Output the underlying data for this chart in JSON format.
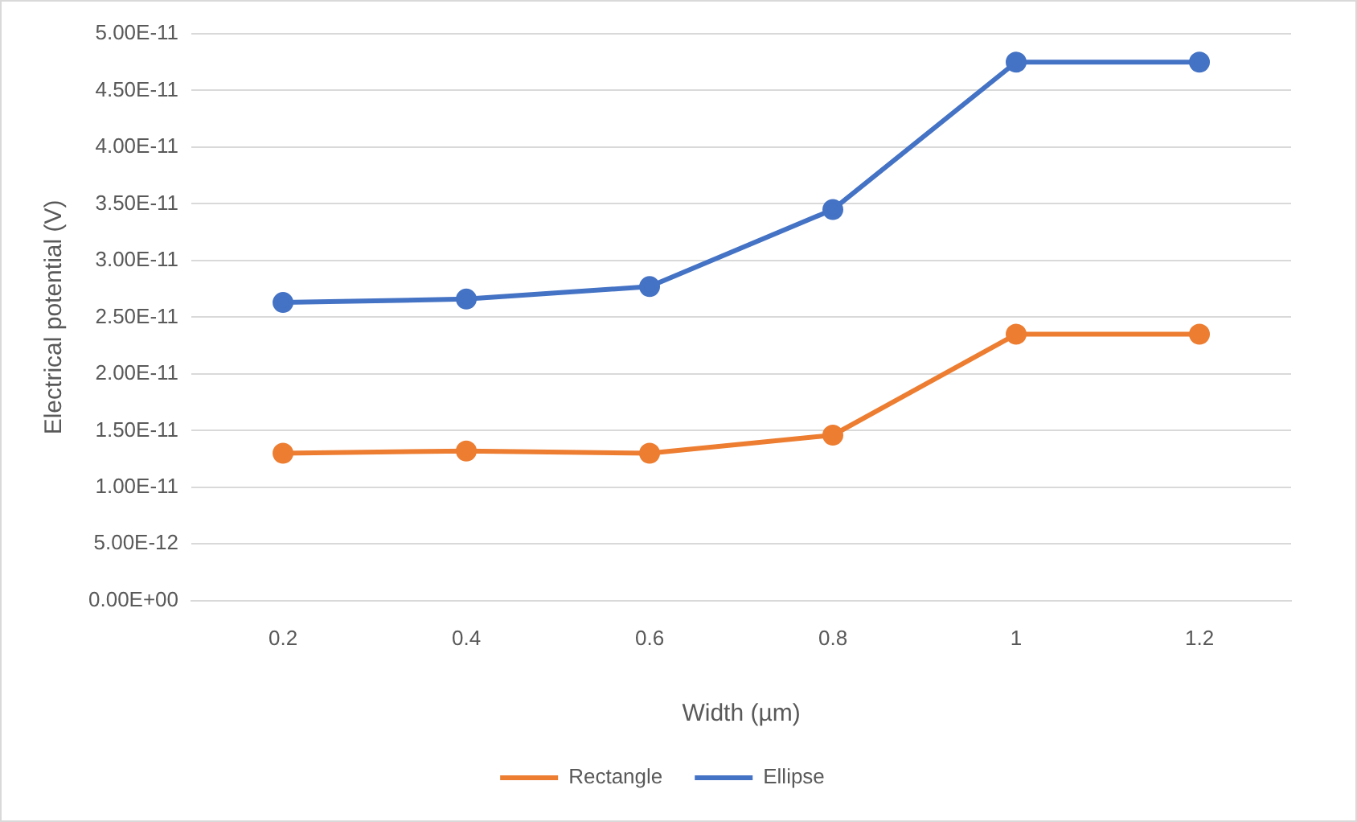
{
  "chart_data": {
    "type": "line",
    "xlabel": "Width (µm)",
    "ylabel": "Electrical potential (V)",
    "categories": [
      "0.2",
      "0.4",
      "0.6",
      "0.8",
      "1",
      "1.2"
    ],
    "series": [
      {
        "name": "Rectangle",
        "color": "#ed7d31",
        "values": [
          1.3e-11,
          1.32e-11,
          1.3e-11,
          1.46e-11,
          2.35e-11,
          2.35e-11
        ]
      },
      {
        "name": "Ellipse",
        "color": "#4472c4",
        "values": [
          2.63e-11,
          2.66e-11,
          2.77e-11,
          3.45e-11,
          4.75e-11,
          4.75e-11
        ]
      }
    ],
    "ylim": [
      0,
      5e-11
    ],
    "yticks": [
      {
        "value": 0,
        "label": "0.00E+00"
      },
      {
        "value": 5e-12,
        "label": "5.00E-12"
      },
      {
        "value": 1e-11,
        "label": "1.00E-11"
      },
      {
        "value": 1.5e-11,
        "label": "1.50E-11"
      },
      {
        "value": 2e-11,
        "label": "2.00E-11"
      },
      {
        "value": 2.5e-11,
        "label": "2.50E-11"
      },
      {
        "value": 3e-11,
        "label": "3.00E-11"
      },
      {
        "value": 3.5e-11,
        "label": "3.50E-11"
      },
      {
        "value": 4e-11,
        "label": "4.00E-11"
      },
      {
        "value": 4.5e-11,
        "label": "4.50E-11"
      },
      {
        "value": 5e-11,
        "label": "5.00E-11"
      }
    ],
    "grid": "y",
    "legend": "bottom",
    "marker": "circle",
    "line_style": "solid"
  }
}
